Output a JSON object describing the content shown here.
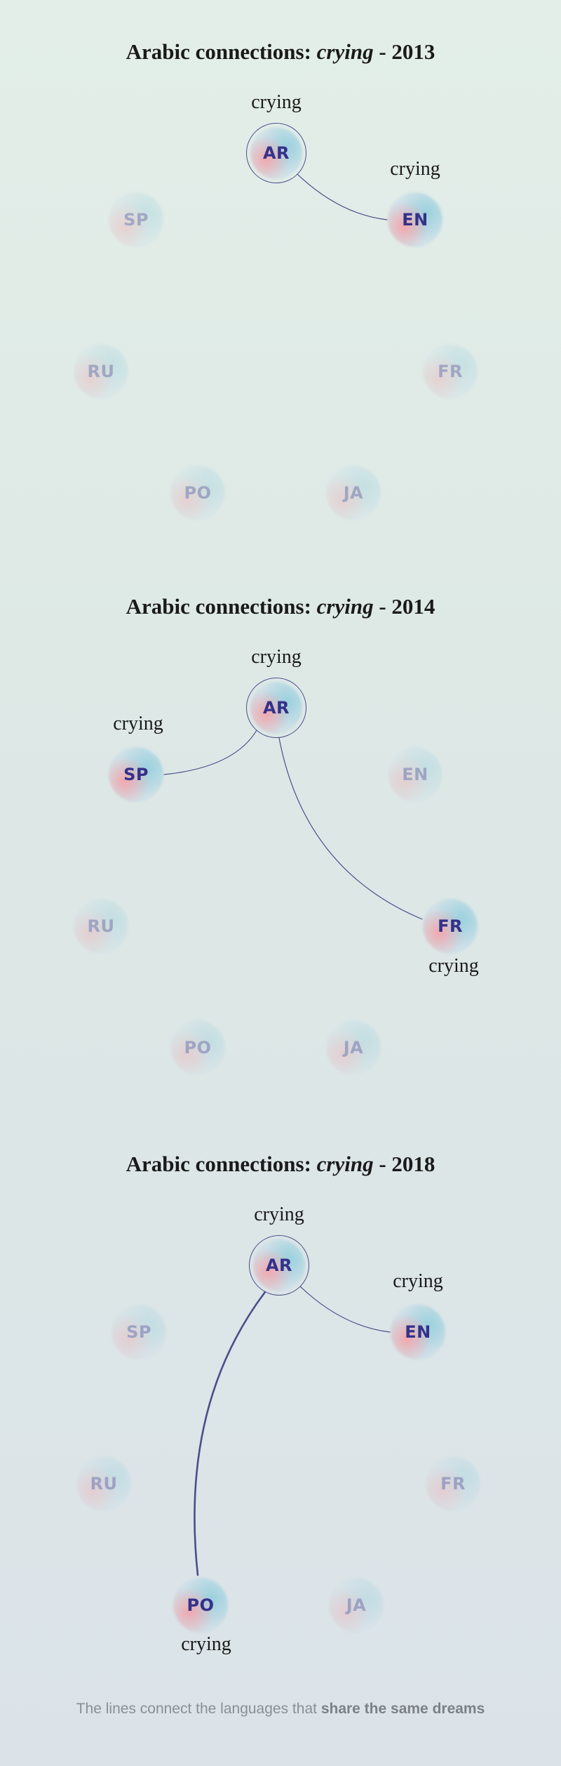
{
  "panels": [
    {
      "title": {
        "prefix": "Arabic connections:",
        "keyword": "crying",
        "suffix": "- 2013"
      },
      "nodes": [
        {
          "code": "AR",
          "state": "source",
          "word": "crying"
        },
        {
          "code": "EN",
          "state": "connected",
          "word": "crying"
        },
        {
          "code": "SP",
          "state": "inactive"
        },
        {
          "code": "RU",
          "state": "inactive"
        },
        {
          "code": "FR",
          "state": "inactive"
        },
        {
          "code": "PO",
          "state": "inactive"
        },
        {
          "code": "JA",
          "state": "inactive"
        }
      ],
      "links": [
        {
          "from": "AR",
          "to": "EN",
          "strength": "thin"
        }
      ]
    },
    {
      "title": {
        "prefix": "Arabic connections:",
        "keyword": "crying",
        "suffix": "- 2014"
      },
      "nodes": [
        {
          "code": "AR",
          "state": "source",
          "word": "crying"
        },
        {
          "code": "EN",
          "state": "inactive"
        },
        {
          "code": "SP",
          "state": "connected",
          "word": "crying"
        },
        {
          "code": "RU",
          "state": "inactive"
        },
        {
          "code": "FR",
          "state": "connected",
          "word": "crying"
        },
        {
          "code": "PO",
          "state": "inactive"
        },
        {
          "code": "JA",
          "state": "inactive"
        }
      ],
      "links": [
        {
          "from": "AR",
          "to": "SP",
          "strength": "thin"
        },
        {
          "from": "AR",
          "to": "FR",
          "strength": "thin"
        }
      ]
    },
    {
      "title": {
        "prefix": "Arabic connections:",
        "keyword": "crying",
        "suffix": "- 2018"
      },
      "nodes": [
        {
          "code": "AR",
          "state": "source",
          "word": "crying"
        },
        {
          "code": "EN",
          "state": "connected",
          "word": "crying"
        },
        {
          "code": "SP",
          "state": "inactive"
        },
        {
          "code": "RU",
          "state": "inactive"
        },
        {
          "code": "FR",
          "state": "inactive"
        },
        {
          "code": "PO",
          "state": "connected",
          "word": "crying"
        },
        {
          "code": "JA",
          "state": "inactive"
        }
      ],
      "links": [
        {
          "from": "AR",
          "to": "EN",
          "strength": "thin"
        },
        {
          "from": "AR",
          "to": "PO",
          "strength": "thick"
        }
      ]
    }
  ],
  "footer": {
    "text": "The lines connect the languages that",
    "strong": "share the same dreams"
  },
  "colors": {
    "line": "#4a4f8a",
    "node_text": "#34318a",
    "footer_text": "#8b8f95"
  }
}
